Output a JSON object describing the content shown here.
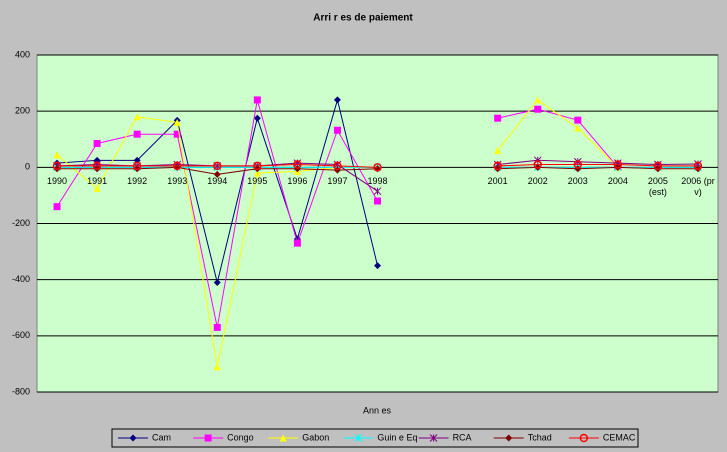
{
  "chart_data": {
    "type": "line",
    "title": "Arri r es de paiement",
    "x_label": "Ann es",
    "categories": [
      "1990",
      "1991",
      "1992",
      "1993",
      "1994",
      "1995",
      "1996",
      "1997",
      "1998",
      null,
      null,
      "2001",
      "2002",
      "2003",
      "2004",
      "2005 (est)",
      "2006 (pr v)"
    ],
    "ylim": [
      -800,
      400
    ],
    "yticks": [
      -800,
      -600,
      -400,
      -200,
      0,
      200,
      400
    ],
    "grid": true,
    "series": [
      {
        "name": "Cam",
        "color": "#000080",
        "marker": "diamond",
        "values": [
          15,
          25,
          25,
          167,
          -410,
          175,
          -255,
          240,
          -350,
          null,
          null,
          null,
          null,
          null,
          null,
          null,
          null
        ]
      },
      {
        "name": "Congo",
        "color": "#ff00ff",
        "marker": "square",
        "values": [
          -140,
          85,
          118,
          118,
          -570,
          240,
          -270,
          132,
          -120,
          null,
          null,
          175,
          207,
          168,
          0,
          null,
          null
        ]
      },
      {
        "name": "Gabon",
        "color": "#ffff00",
        "marker": "triangle",
        "values": [
          45,
          -75,
          180,
          160,
          -710,
          -20,
          -15,
          0,
          0,
          null,
          null,
          60,
          240,
          140,
          0,
          null,
          null
        ]
      },
      {
        "name": "Guin e Eq",
        "color": "#00ffff",
        "marker": "star",
        "values": [
          0,
          0,
          0,
          0,
          0,
          0,
          0,
          0,
          0,
          null,
          null,
          0,
          0,
          0,
          0,
          0,
          0
        ]
      },
      {
        "name": "RCA",
        "color": "#800080",
        "marker": "x",
        "values": [
          5,
          10,
          5,
          10,
          5,
          5,
          15,
          10,
          -85,
          null,
          null,
          10,
          25,
          20,
          15,
          10,
          12
        ]
      },
      {
        "name": "Tchad",
        "color": "#800000",
        "marker": "diamond",
        "values": [
          -5,
          -5,
          -5,
          0,
          -25,
          -5,
          -5,
          -10,
          -5,
          null,
          null,
          -5,
          0,
          -5,
          0,
          -5,
          -5
        ]
      },
      {
        "name": "CEMAC",
        "color": "#ff0000",
        "marker": "circle",
        "values": [
          5,
          5,
          5,
          5,
          5,
          5,
          10,
          5,
          0,
          null,
          null,
          5,
          10,
          10,
          10,
          5,
          5
        ]
      }
    ]
  }
}
